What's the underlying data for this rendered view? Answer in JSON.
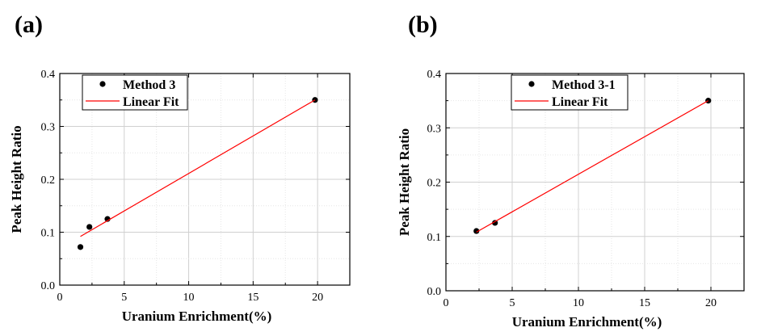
{
  "figure": {
    "panels": [
      {
        "label": "(a)"
      },
      {
        "label": "(b)"
      }
    ]
  },
  "chart_data": [
    {
      "type": "scatter",
      "panel": "(a)",
      "xlabel": "Uranium Enrichment(%)",
      "ylabel": "Peak Height Ratio",
      "xlim": [
        0,
        22.5
      ],
      "ylim": [
        0.0,
        0.4
      ],
      "xticks": [
        0,
        5,
        10,
        15,
        20
      ],
      "xtick_labels": [
        "0",
        "5",
        "10",
        "15",
        "20"
      ],
      "yticks": [
        0.0,
        0.1,
        0.2,
        0.3,
        0.4
      ],
      "ytick_labels": [
        "0.0",
        "0.1",
        "0.2",
        "0.3",
        "0.4"
      ],
      "grid": true,
      "legend_position": "top-left",
      "series": [
        {
          "name": "Method 3",
          "kind": "scatter",
          "color": "#000000",
          "x": [
            1.6,
            2.3,
            3.7,
            19.8
          ],
          "y": [
            0.072,
            0.11,
            0.125,
            0.35
          ]
        },
        {
          "name": "Linear Fit",
          "kind": "line",
          "color": "#ff0000",
          "x": [
            1.6,
            19.8
          ],
          "y": [
            0.092,
            0.35
          ]
        }
      ]
    },
    {
      "type": "scatter",
      "panel": "(b)",
      "xlabel": "Uranium Enrichment(%)",
      "ylabel": "Peak Height Ratio",
      "xlim": [
        0,
        22.5
      ],
      "ylim": [
        0.0,
        0.4
      ],
      "xticks": [
        0,
        5,
        10,
        15,
        20
      ],
      "xtick_labels": [
        "0",
        "5",
        "10",
        "15",
        "20"
      ],
      "yticks": [
        0.0,
        0.1,
        0.2,
        0.3,
        0.4
      ],
      "ytick_labels": [
        "0.0",
        "0.1",
        "0.2",
        "0.3",
        "0.4"
      ],
      "grid": true,
      "legend_position": "top-center",
      "series": [
        {
          "name": "Method 3-1",
          "kind": "scatter",
          "color": "#000000",
          "x": [
            2.3,
            3.7,
            19.8
          ],
          "y": [
            0.11,
            0.125,
            0.35
          ]
        },
        {
          "name": "Linear Fit",
          "kind": "line",
          "color": "#ff0000",
          "x": [
            2.3,
            19.8
          ],
          "y": [
            0.108,
            0.35
          ]
        }
      ]
    }
  ]
}
